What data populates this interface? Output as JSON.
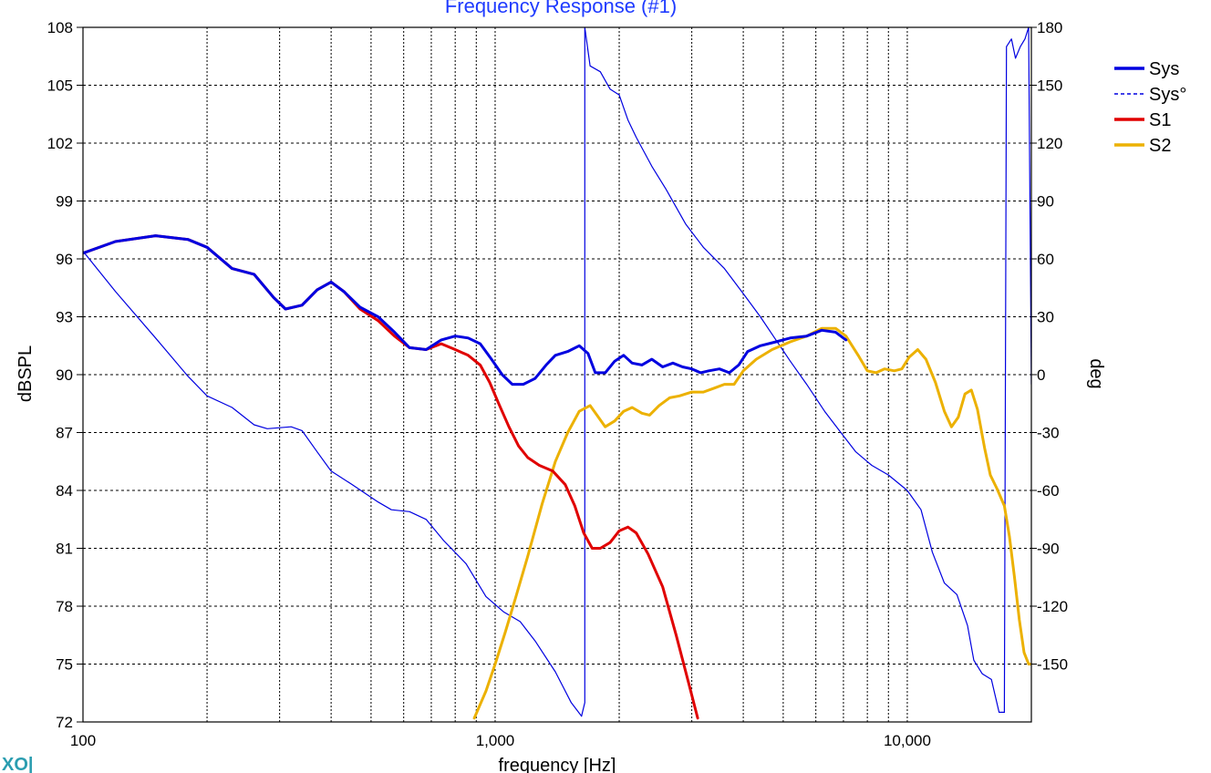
{
  "chart_data": {
    "type": "line",
    "title": "Frequency Response (#1)",
    "xlabel": "frequency [Hz]",
    "ylabel": "dBSPL",
    "y2label": "deg",
    "xscale": "log",
    "xlim": [
      100,
      20000
    ],
    "ylim": [
      72,
      108
    ],
    "y2lim": [
      -180,
      180
    ],
    "grid": true,
    "legend_position": "top-right",
    "x_tick_labels": [
      {
        "value": 100,
        "label": "100"
      },
      {
        "value": 1000,
        "label": "1,000"
      },
      {
        "value": 10000,
        "label": "10,000"
      }
    ],
    "y_ticks": [
      72,
      75,
      78,
      81,
      84,
      87,
      90,
      93,
      96,
      99,
      102,
      105,
      108
    ],
    "y2_ticks": [
      -150,
      -120,
      -90,
      -60,
      -30,
      0,
      30,
      60,
      90,
      120,
      150,
      180
    ],
    "series": [
      {
        "name": "Sys",
        "axis": "left",
        "color": "#0000e0",
        "style": "solid",
        "width": 3,
        "points": [
          [
            100,
            96.3
          ],
          [
            120,
            96.9
          ],
          [
            150,
            97.2
          ],
          [
            180,
            97.0
          ],
          [
            200,
            96.6
          ],
          [
            230,
            95.5
          ],
          [
            260,
            95.2
          ],
          [
            290,
            94.0
          ],
          [
            310,
            93.4
          ],
          [
            340,
            93.6
          ],
          [
            370,
            94.4
          ],
          [
            400,
            94.8
          ],
          [
            430,
            94.3
          ],
          [
            470,
            93.5
          ],
          [
            520,
            93.0
          ],
          [
            570,
            92.2
          ],
          [
            620,
            91.4
          ],
          [
            680,
            91.3
          ],
          [
            740,
            91.8
          ],
          [
            800,
            92.0
          ],
          [
            860,
            91.9
          ],
          [
            920,
            91.6
          ],
          [
            980,
            90.8
          ],
          [
            1040,
            90.0
          ],
          [
            1100,
            89.5
          ],
          [
            1170,
            89.5
          ],
          [
            1250,
            89.8
          ],
          [
            1330,
            90.5
          ],
          [
            1400,
            91.0
          ],
          [
            1500,
            91.2
          ],
          [
            1600,
            91.5
          ],
          [
            1680,
            91.1
          ],
          [
            1750,
            90.1
          ],
          [
            1850,
            90.1
          ],
          [
            1950,
            90.7
          ],
          [
            2050,
            91.0
          ],
          [
            2150,
            90.6
          ],
          [
            2270,
            90.5
          ],
          [
            2400,
            90.8
          ],
          [
            2550,
            90.4
          ],
          [
            2700,
            90.6
          ],
          [
            2850,
            90.4
          ],
          [
            3000,
            90.3
          ],
          [
            3150,
            90.1
          ],
          [
            3300,
            90.2
          ],
          [
            3500,
            90.3
          ],
          [
            3700,
            90.1
          ],
          [
            3900,
            90.5
          ],
          [
            4100,
            91.2
          ],
          [
            4400,
            91.5
          ],
          [
            4800,
            91.7
          ],
          [
            5200,
            91.9
          ],
          [
            5700,
            92.0
          ],
          [
            6200,
            92.3
          ],
          [
            6700,
            92.2
          ],
          [
            7100,
            91.8
          ]
        ]
      },
      {
        "name": "Sys°",
        "axis": "right",
        "color": "#0000e0",
        "style": "dashed-thin",
        "width": 1.2,
        "segments": [
          [
            [
              100,
              64
            ],
            [
              120,
              43
            ],
            [
              150,
              19
            ],
            [
              180,
              -1
            ],
            [
              200,
              -11
            ],
            [
              230,
              -17
            ],
            [
              260,
              -26
            ],
            [
              280,
              -28
            ],
            [
              320,
              -27
            ],
            [
              340,
              -29
            ],
            [
              370,
              -40
            ],
            [
              400,
              -50
            ],
            [
              450,
              -57
            ],
            [
              520,
              -66
            ],
            [
              560,
              -70
            ],
            [
              620,
              -71
            ],
            [
              680,
              -75
            ],
            [
              750,
              -86
            ],
            [
              850,
              -98
            ],
            [
              950,
              -115
            ],
            [
              1050,
              -123
            ],
            [
              1150,
              -128
            ],
            [
              1250,
              -138
            ],
            [
              1400,
              -154
            ],
            [
              1530,
              -170
            ],
            [
              1620,
              -177
            ]
          ],
          [
            [
              1620,
              -177
            ],
            [
              1650,
              -170
            ],
            [
              1650,
              180
            ],
            [
              1700,
              160
            ],
            [
              1800,
              157
            ],
            [
              1900,
              148
            ],
            [
              2000,
              145
            ],
            [
              2100,
              132
            ],
            [
              2200,
              123
            ],
            [
              2400,
              108
            ],
            [
              2600,
              96
            ],
            [
              2900,
              78
            ],
            [
              3200,
              66
            ],
            [
              3600,
              55
            ],
            [
              4000,
              42
            ],
            [
              4400,
              30
            ],
            [
              4800,
              18
            ],
            [
              5200,
              7
            ],
            [
              5700,
              -5
            ],
            [
              6300,
              -19
            ],
            [
              6900,
              -30
            ],
            [
              7500,
              -40
            ],
            [
              8200,
              -47
            ],
            [
              9000,
              -52
            ],
            [
              10000,
              -60
            ],
            [
              10800,
              -70
            ],
            [
              11500,
              -92
            ],
            [
              12300,
              -108
            ],
            [
              13200,
              -114
            ],
            [
              14000,
              -130
            ],
            [
              14500,
              -148
            ],
            [
              15200,
              -155
            ],
            [
              16000,
              -158
            ],
            [
              16700,
              -175
            ],
            [
              17200,
              -175
            ]
          ],
          [
            [
              17200,
              -175
            ],
            [
              17400,
              170
            ],
            [
              17900,
              174
            ],
            [
              18300,
              164
            ],
            [
              18800,
              170
            ],
            [
              19300,
              174
            ],
            [
              19700,
              180
            ]
          ],
          [
            [
              19700,
              180
            ],
            [
              20000,
              -5
            ]
          ]
        ]
      },
      {
        "name": "S1",
        "axis": "left",
        "color": "#e00000",
        "style": "solid",
        "width": 3,
        "points": [
          [
            100,
            96.3
          ],
          [
            120,
            96.9
          ],
          [
            150,
            97.2
          ],
          [
            180,
            97.0
          ],
          [
            200,
            96.6
          ],
          [
            230,
            95.5
          ],
          [
            260,
            95.2
          ],
          [
            290,
            94.0
          ],
          [
            310,
            93.4
          ],
          [
            340,
            93.6
          ],
          [
            370,
            94.4
          ],
          [
            400,
            94.8
          ],
          [
            430,
            94.3
          ],
          [
            470,
            93.4
          ],
          [
            520,
            92.8
          ],
          [
            570,
            92.0
          ],
          [
            620,
            91.4
          ],
          [
            680,
            91.3
          ],
          [
            740,
            91.6
          ],
          [
            800,
            91.3
          ],
          [
            860,
            91.0
          ],
          [
            920,
            90.5
          ],
          [
            970,
            89.6
          ],
          [
            1020,
            88.5
          ],
          [
            1080,
            87.3
          ],
          [
            1140,
            86.3
          ],
          [
            1200,
            85.7
          ],
          [
            1280,
            85.3
          ],
          [
            1380,
            85.0
          ],
          [
            1480,
            84.3
          ],
          [
            1560,
            83.2
          ],
          [
            1640,
            81.8
          ],
          [
            1720,
            81.0
          ],
          [
            1800,
            81.0
          ],
          [
            1900,
            81.3
          ],
          [
            2000,
            81.9
          ],
          [
            2100,
            82.1
          ],
          [
            2200,
            81.8
          ],
          [
            2350,
            80.7
          ],
          [
            2550,
            79.0
          ],
          [
            2750,
            76.5
          ],
          [
            2950,
            74.0
          ],
          [
            3100,
            72.2
          ]
        ]
      },
      {
        "name": "S2",
        "axis": "left",
        "color": "#ecb100",
        "style": "solid",
        "width": 3,
        "points": [
          [
            890,
            72.2
          ],
          [
            950,
            73.6
          ],
          [
            1000,
            75.0
          ],
          [
            1060,
            76.7
          ],
          [
            1120,
            78.4
          ],
          [
            1200,
            80.6
          ],
          [
            1300,
            83.3
          ],
          [
            1400,
            85.5
          ],
          [
            1500,
            87.0
          ],
          [
            1600,
            88.1
          ],
          [
            1700,
            88.4
          ],
          [
            1780,
            87.8
          ],
          [
            1850,
            87.3
          ],
          [
            1950,
            87.6
          ],
          [
            2050,
            88.1
          ],
          [
            2150,
            88.3
          ],
          [
            2270,
            88.0
          ],
          [
            2370,
            87.9
          ],
          [
            2500,
            88.4
          ],
          [
            2650,
            88.8
          ],
          [
            2800,
            88.9
          ],
          [
            3000,
            89.1
          ],
          [
            3200,
            89.1
          ],
          [
            3400,
            89.3
          ],
          [
            3600,
            89.5
          ],
          [
            3800,
            89.5
          ],
          [
            4000,
            90.2
          ],
          [
            4300,
            90.8
          ],
          [
            4700,
            91.3
          ],
          [
            5200,
            91.7
          ],
          [
            5700,
            92.0
          ],
          [
            6200,
            92.4
          ],
          [
            6700,
            92.4
          ],
          [
            7100,
            92.0
          ],
          [
            7600,
            91.0
          ],
          [
            8000,
            90.2
          ],
          [
            8400,
            90.1
          ],
          [
            8800,
            90.3
          ],
          [
            9300,
            90.2
          ],
          [
            9700,
            90.3
          ],
          [
            10100,
            90.9
          ],
          [
            10600,
            91.3
          ],
          [
            11100,
            90.8
          ],
          [
            11700,
            89.6
          ],
          [
            12300,
            88.1
          ],
          [
            12800,
            87.3
          ],
          [
            13300,
            87.8
          ],
          [
            13800,
            89.0
          ],
          [
            14300,
            89.2
          ],
          [
            14800,
            88.2
          ],
          [
            15400,
            86.2
          ],
          [
            15900,
            84.8
          ],
          [
            16500,
            84.1
          ],
          [
            17200,
            83.2
          ],
          [
            17700,
            81.6
          ],
          [
            18200,
            79.5
          ],
          [
            18700,
            77.3
          ],
          [
            19200,
            75.6
          ],
          [
            19700,
            75.0
          ],
          [
            20000,
            75.0
          ]
        ]
      }
    ]
  },
  "watermark": "XO|"
}
